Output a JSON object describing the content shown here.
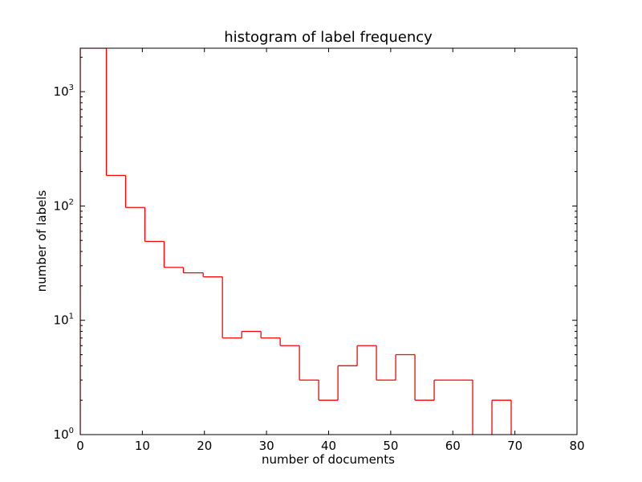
{
  "chart_data": {
    "type": "histogram",
    "title": "histogram of label frequency",
    "xlabel": "number of documents",
    "ylabel": "number of labels",
    "xlim": [
      0,
      80
    ],
    "ylim": [
      1,
      2400
    ],
    "yscale": "log",
    "x_ticks": [
      0,
      10,
      20,
      30,
      40,
      50,
      60,
      70,
      80
    ],
    "y_ticks": [
      {
        "value": 1,
        "base": "10",
        "exp": "0"
      },
      {
        "value": 10,
        "base": "10",
        "exp": "1"
      },
      {
        "value": 100,
        "base": "10",
        "exp": "2"
      },
      {
        "value": 1000,
        "base": "10",
        "exp": "3"
      }
    ],
    "series": [
      {
        "color": "#ff0000",
        "bins": [
          {
            "x0": 0.0,
            "x1": 4.2,
            "count": 2400
          },
          {
            "x0": 4.2,
            "x1": 7.3,
            "count": 185
          },
          {
            "x0": 7.3,
            "x1": 10.4,
            "count": 97
          },
          {
            "x0": 10.4,
            "x1": 13.5,
            "count": 49
          },
          {
            "x0": 13.5,
            "x1": 16.6,
            "count": 29
          },
          {
            "x0": 16.6,
            "x1": 19.8,
            "count": 26
          },
          {
            "x0": 19.8,
            "x1": 22.9,
            "count": 24
          },
          {
            "x0": 22.9,
            "x1": 26.0,
            "count": 7
          },
          {
            "x0": 26.0,
            "x1": 29.1,
            "count": 8
          },
          {
            "x0": 29.1,
            "x1": 32.2,
            "count": 7
          },
          {
            "x0": 32.2,
            "x1": 35.3,
            "count": 6
          },
          {
            "x0": 35.3,
            "x1": 38.4,
            "count": 3
          },
          {
            "x0": 38.4,
            "x1": 41.5,
            "count": 2
          },
          {
            "x0": 41.5,
            "x1": 44.6,
            "count": 4
          },
          {
            "x0": 44.6,
            "x1": 47.7,
            "count": 6
          },
          {
            "x0": 47.7,
            "x1": 50.8,
            "count": 3
          },
          {
            "x0": 50.8,
            "x1": 53.9,
            "count": 5
          },
          {
            "x0": 53.9,
            "x1": 57.0,
            "count": 2
          },
          {
            "x0": 57.0,
            "x1": 60.1,
            "count": 3
          },
          {
            "x0": 60.1,
            "x1": 63.2,
            "count": 3
          },
          {
            "x0": 63.2,
            "x1": 66.3,
            "count": 0
          },
          {
            "x0": 66.3,
            "x1": 69.4,
            "count": 2
          }
        ]
      }
    ],
    "grid": false,
    "legend": "none"
  }
}
